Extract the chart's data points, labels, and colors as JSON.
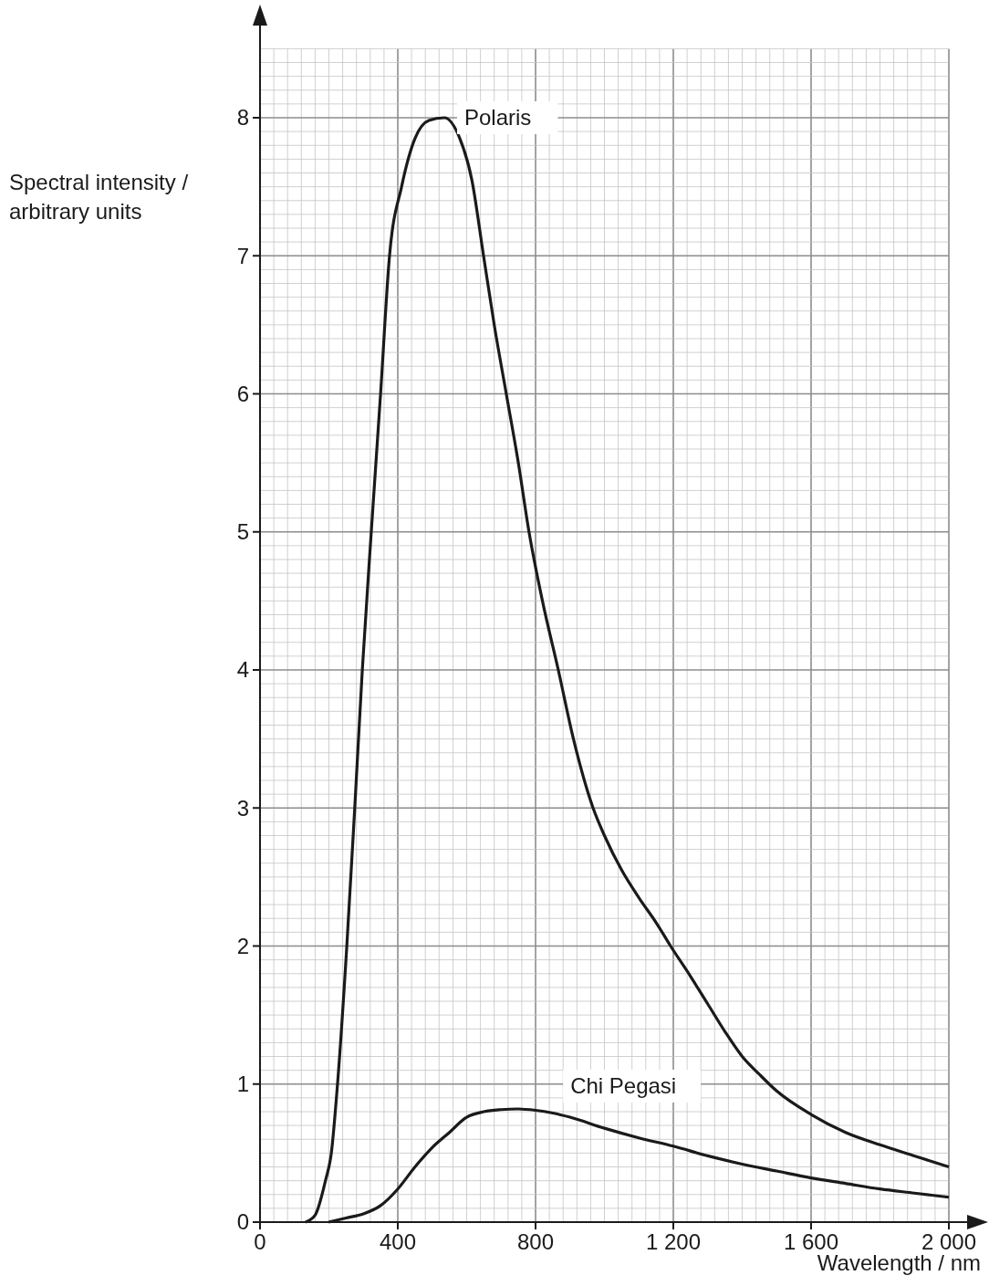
{
  "chart_data": {
    "type": "line",
    "xlabel": "Wavelength / nm",
    "ylabel": "Spectral intensity / arbitrary units",
    "xlim": [
      0,
      2000
    ],
    "ylim": [
      0,
      8.5
    ],
    "xticks": [
      0,
      400,
      800,
      {
        "value": 1200,
        "label": "1 200"
      },
      {
        "value": 1600,
        "label": "1 600"
      },
      {
        "value": 2000,
        "label": "2 000"
      }
    ],
    "yticks": [
      0,
      1,
      2,
      3,
      4,
      5,
      6,
      7,
      8
    ],
    "grid": true,
    "marker": "none",
    "line_style": "solid",
    "series": [
      {
        "name": "Polaris",
        "color": "#1a1a1a",
        "x": [
          132,
          160,
          190,
          207,
          225,
          252,
          275,
          297,
          323,
          350,
          376,
          411,
          450,
          490,
          535,
          580,
          615,
          649,
          680,
          715,
          750,
          781,
          820,
          866,
          910,
          967,
          1000,
          1050,
          1100,
          1150,
          1192,
          1250,
          1300,
          1350,
          1400,
          1450,
          1500,
          1600,
          1700,
          1800,
          1900,
          2000
        ],
        "values": [
          0,
          0.05,
          0.3,
          0.5,
          1,
          2,
          3,
          4,
          5,
          6,
          7,
          7.5,
          7.85,
          7.98,
          8.0,
          7.85,
          7.55,
          7,
          6.5,
          6,
          5.5,
          5,
          4.5,
          4,
          3.5,
          3,
          2.8,
          2.55,
          2.35,
          2.17,
          2.0,
          1.78,
          1.58,
          1.38,
          1.2,
          1.07,
          0.95,
          0.78,
          0.65,
          0.56,
          0.48,
          0.4
        ]
      },
      {
        "name": "Chi Pegasi",
        "color": "#1a1a1a",
        "x": [
          199,
          250,
          300,
          350,
          400,
          450,
          500,
          550,
          600,
          650,
          700,
          750,
          800,
          850,
          900,
          1000,
          1100,
          1200,
          1300,
          1400,
          1500,
          1600,
          1700,
          1800,
          1900,
          2000
        ],
        "values": [
          0,
          0.03,
          0.06,
          0.12,
          0.24,
          0.4,
          0.54,
          0.65,
          0.76,
          0.8,
          0.815,
          0.82,
          0.81,
          0.79,
          0.76,
          0.68,
          0.61,
          0.55,
          0.48,
          0.42,
          0.37,
          0.32,
          0.28,
          0.24,
          0.21,
          0.18
        ]
      }
    ]
  }
}
